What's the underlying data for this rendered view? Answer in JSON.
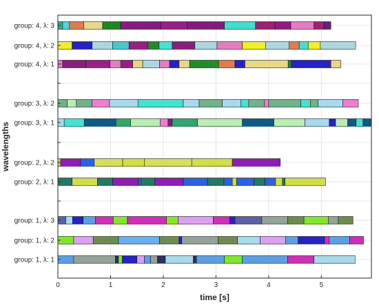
{
  "chart_data": {
    "type": "bar",
    "title": "",
    "xlabel": "time [s]",
    "ylabel": "wavelengths",
    "xlim": [
      0,
      5.95
    ],
    "xticks": [
      "0",
      "1",
      "2",
      "3",
      "4",
      "5"
    ],
    "grid": true,
    "rows": [
      {
        "label": "group: 4, λ: 3",
        "segments": [
          [
            0.0,
            0.09,
            "#2db08f"
          ],
          [
            0.09,
            0.22,
            "#4fd3df"
          ],
          [
            0.22,
            0.49,
            "#e07b4f"
          ],
          [
            0.49,
            0.85,
            "#e8d784"
          ],
          [
            0.85,
            1.19,
            "#188a1e"
          ],
          [
            1.19,
            1.95,
            "#871b7f"
          ],
          [
            1.95,
            2.45,
            "#9a1f88"
          ],
          [
            2.45,
            3.16,
            "#861b7e"
          ],
          [
            3.16,
            3.75,
            "#3de0cd"
          ],
          [
            3.75,
            4.12,
            "#a31d75"
          ],
          [
            4.12,
            4.42,
            "#911a83"
          ],
          [
            4.42,
            4.86,
            "#e57cc2"
          ],
          [
            4.86,
            5.05,
            "#a51f72"
          ],
          [
            5.05,
            5.18,
            "#6b1c8a"
          ]
        ]
      },
      {
        "label": "group: 4, λ: 2",
        "segments": [
          [
            0.0,
            0.27,
            "#f0f024"
          ],
          [
            0.27,
            0.65,
            "#2523c8"
          ],
          [
            0.65,
            1.04,
            "#abd8e0"
          ],
          [
            1.04,
            1.35,
            "#44c9cf"
          ],
          [
            1.35,
            1.71,
            "#9a1c84"
          ],
          [
            1.71,
            1.92,
            "#1f8e2a"
          ],
          [
            1.92,
            2.17,
            "#3ee6d2"
          ],
          [
            2.17,
            2.6,
            "#8c1b82"
          ],
          [
            2.6,
            3.02,
            "#abd8e0"
          ],
          [
            3.02,
            3.5,
            "#e57cc2"
          ],
          [
            3.5,
            3.94,
            "#f0f024"
          ],
          [
            3.94,
            4.39,
            "#abd8e0"
          ],
          [
            4.39,
            4.58,
            "#e07b4f"
          ],
          [
            4.58,
            4.75,
            "#42e0cf"
          ],
          [
            4.75,
            4.98,
            "#f0f024"
          ],
          [
            4.98,
            5.65,
            "#abd8e0"
          ]
        ]
      },
      {
        "label": "group: 4, λ: 1",
        "segments": [
          [
            0.0,
            0.09,
            "#e57cc2"
          ],
          [
            0.09,
            0.53,
            "#8a1d7e"
          ],
          [
            0.53,
            0.99,
            "#9a1f88"
          ],
          [
            0.99,
            1.19,
            "#e57cc2"
          ],
          [
            1.19,
            1.21,
            "#e07b4f"
          ],
          [
            1.21,
            1.42,
            "#9a1c84"
          ],
          [
            1.42,
            1.61,
            "#e8d784"
          ],
          [
            1.61,
            1.93,
            "#abd8e0"
          ],
          [
            1.93,
            2.12,
            "#e57cc2"
          ],
          [
            2.12,
            2.3,
            "#2523c8"
          ],
          [
            2.3,
            2.5,
            "#e8d784"
          ],
          [
            2.5,
            3.05,
            "#1f8e2a"
          ],
          [
            3.05,
            3.36,
            "#e07b4f"
          ],
          [
            3.36,
            3.55,
            "#2523c8"
          ],
          [
            3.55,
            4.37,
            "#e8d784"
          ],
          [
            4.37,
            4.43,
            "#1f8e2a"
          ],
          [
            4.43,
            5.18,
            "#2523c8"
          ],
          [
            5.18,
            5.37,
            "#e8d784"
          ]
        ]
      },
      {
        "label": "group: 3, λ: 2",
        "segments": [
          [
            0.0,
            0.18,
            "#6fb38a"
          ],
          [
            0.18,
            0.35,
            "#b6efb0"
          ],
          [
            0.35,
            0.65,
            "#6fb38a"
          ],
          [
            0.65,
            0.98,
            "#f27dd0"
          ],
          [
            0.98,
            1.52,
            "#a6dbef"
          ],
          [
            1.52,
            2.38,
            "#3ee6d2"
          ],
          [
            2.38,
            2.68,
            "#a6dbef"
          ],
          [
            2.68,
            3.12,
            "#6fb38a"
          ],
          [
            3.12,
            3.47,
            "#a6dbef"
          ],
          [
            3.47,
            3.62,
            "#3ee6d2"
          ],
          [
            3.62,
            3.92,
            "#6fb38a"
          ],
          [
            3.92,
            4.0,
            "#f27dd0"
          ],
          [
            4.0,
            4.61,
            "#6fb38a"
          ],
          [
            4.61,
            4.79,
            "#3ee6d2"
          ],
          [
            4.79,
            4.94,
            "#6fb38a"
          ],
          [
            4.94,
            5.41,
            "#a6dbef"
          ],
          [
            5.41,
            5.7,
            "#f27dd0"
          ]
        ]
      },
      {
        "label": "group: 3, λ: 1",
        "segments": [
          [
            0.0,
            0.12,
            "#a6dbef"
          ],
          [
            0.12,
            0.5,
            "#3ee6d2"
          ],
          [
            0.5,
            1.1,
            "#0c5b8a"
          ],
          [
            1.1,
            1.38,
            "#2ea86e"
          ],
          [
            1.38,
            1.94,
            "#b6efb0"
          ],
          [
            1.94,
            2.09,
            "#f27dd0"
          ],
          [
            2.09,
            2.17,
            "#871b7f"
          ],
          [
            2.17,
            2.65,
            "#2ea86e"
          ],
          [
            2.65,
            3.5,
            "#b6efb0"
          ],
          [
            3.5,
            4.1,
            "#0c5b8a"
          ],
          [
            4.1,
            4.69,
            "#b6efb0"
          ],
          [
            4.69,
            5.15,
            "#a6dbef"
          ],
          [
            5.15,
            5.27,
            "#2523c8"
          ],
          [
            5.27,
            5.5,
            "#b6efb0"
          ],
          [
            5.5,
            5.66,
            "#0c5b8a"
          ],
          [
            5.66,
            5.79,
            "#3ee6d2"
          ],
          [
            5.79,
            5.95,
            "#0c5b8a"
          ]
        ]
      },
      {
        "label": "group: 2, λ: 2",
        "segments": [
          [
            0.0,
            0.05,
            "#d4e05a"
          ],
          [
            0.05,
            0.43,
            "#8e1cb5"
          ],
          [
            0.43,
            0.69,
            "#2a62e6"
          ],
          [
            0.69,
            1.23,
            "#d4e05a"
          ],
          [
            1.23,
            1.64,
            "#d0e044"
          ],
          [
            1.64,
            2.54,
            "#d4e05a"
          ],
          [
            2.54,
            3.31,
            "#d0e044"
          ],
          [
            3.31,
            4.22,
            "#8e1cb5"
          ]
        ]
      },
      {
        "label": "group: 2, λ: 1",
        "segments": [
          [
            0.0,
            0.27,
            "#207a64"
          ],
          [
            0.27,
            0.75,
            "#d0e044"
          ],
          [
            0.75,
            1.04,
            "#207a64"
          ],
          [
            1.04,
            1.53,
            "#8e1cb5"
          ],
          [
            1.53,
            1.58,
            "#2a62e6"
          ],
          [
            1.58,
            1.84,
            "#207a64"
          ],
          [
            1.84,
            2.38,
            "#8e1cb5"
          ],
          [
            2.38,
            2.84,
            "#2a62e6"
          ],
          [
            2.84,
            3.15,
            "#207a64"
          ],
          [
            3.15,
            3.31,
            "#2a62e6"
          ],
          [
            3.31,
            3.39,
            "#d0e044"
          ],
          [
            3.39,
            3.72,
            "#2a62e6"
          ],
          [
            3.72,
            3.93,
            "#207a64"
          ],
          [
            3.93,
            4.13,
            "#2a62e6"
          ],
          [
            4.13,
            4.26,
            "#d0e044"
          ],
          [
            4.26,
            4.31,
            "#207a64"
          ],
          [
            4.31,
            5.08,
            "#d0e044"
          ]
        ]
      },
      {
        "label": "group: 1, λ: 3",
        "segments": [
          [
            0.0,
            0.15,
            "#5a5fa8"
          ],
          [
            0.15,
            0.28,
            "#a6dbef"
          ],
          [
            0.28,
            0.48,
            "#2523c8"
          ],
          [
            0.48,
            0.71,
            "#5aa0e8"
          ],
          [
            0.71,
            1.05,
            "#d02db8"
          ],
          [
            1.05,
            1.32,
            "#80e826"
          ],
          [
            1.32,
            2.06,
            "#d02db8"
          ],
          [
            2.06,
            2.28,
            "#80e826"
          ],
          [
            2.28,
            2.95,
            "#dba0ef"
          ],
          [
            2.95,
            3.26,
            "#d02db8"
          ],
          [
            3.26,
            3.36,
            "#2523c8"
          ],
          [
            3.36,
            3.87,
            "#5a5fa8"
          ],
          [
            3.87,
            4.36,
            "#93a399"
          ],
          [
            4.36,
            4.67,
            "#6e8c50"
          ],
          [
            4.67,
            5.13,
            "#80e826"
          ],
          [
            5.13,
            5.32,
            "#93a399"
          ],
          [
            5.32,
            5.6,
            "#6e8c50"
          ]
        ]
      },
      {
        "label": "group: 1, λ: 2",
        "segments": [
          [
            0.0,
            0.3,
            "#80e826"
          ],
          [
            0.3,
            0.67,
            "#dba0ef"
          ],
          [
            0.67,
            1.15,
            "#6e8c50"
          ],
          [
            1.15,
            1.93,
            "#6aaff0"
          ],
          [
            1.93,
            2.3,
            "#6e8c50"
          ],
          [
            2.3,
            2.35,
            "#2523c8"
          ],
          [
            2.35,
            3.04,
            "#93a399"
          ],
          [
            3.04,
            3.41,
            "#6e8c50"
          ],
          [
            3.41,
            3.84,
            "#a6dbef"
          ],
          [
            3.84,
            4.32,
            "#dba0ef"
          ],
          [
            4.32,
            4.56,
            "#5aa0e8"
          ],
          [
            4.56,
            5.06,
            "#2523c8"
          ],
          [
            5.06,
            5.15,
            "#d02db8"
          ],
          [
            5.15,
            5.54,
            "#5aa0e8"
          ],
          [
            5.54,
            5.8,
            "#d02db8"
          ]
        ]
      },
      {
        "label": "group: 1, λ: 1",
        "segments": [
          [
            0.0,
            0.3,
            "#5aa0e8"
          ],
          [
            0.3,
            1.09,
            "#93a399"
          ],
          [
            1.09,
            1.15,
            "#2b2f66"
          ],
          [
            1.15,
            1.22,
            "#80e826"
          ],
          [
            1.22,
            1.5,
            "#2523c8"
          ],
          [
            1.5,
            1.64,
            "#dba0ef"
          ],
          [
            1.64,
            1.76,
            "#5aa0e8"
          ],
          [
            1.76,
            1.89,
            "#93a399"
          ],
          [
            1.89,
            2.04,
            "#2b2f66"
          ],
          [
            2.04,
            2.57,
            "#a6dbef"
          ],
          [
            2.57,
            2.63,
            "#2b2f66"
          ],
          [
            2.63,
            3.16,
            "#5aa0e8"
          ],
          [
            3.16,
            3.5,
            "#80e826"
          ],
          [
            3.5,
            4.36,
            "#5aa0e8"
          ],
          [
            4.36,
            4.86,
            "#d02db8"
          ],
          [
            4.86,
            5.64,
            "#a6dbef"
          ]
        ]
      }
    ]
  }
}
